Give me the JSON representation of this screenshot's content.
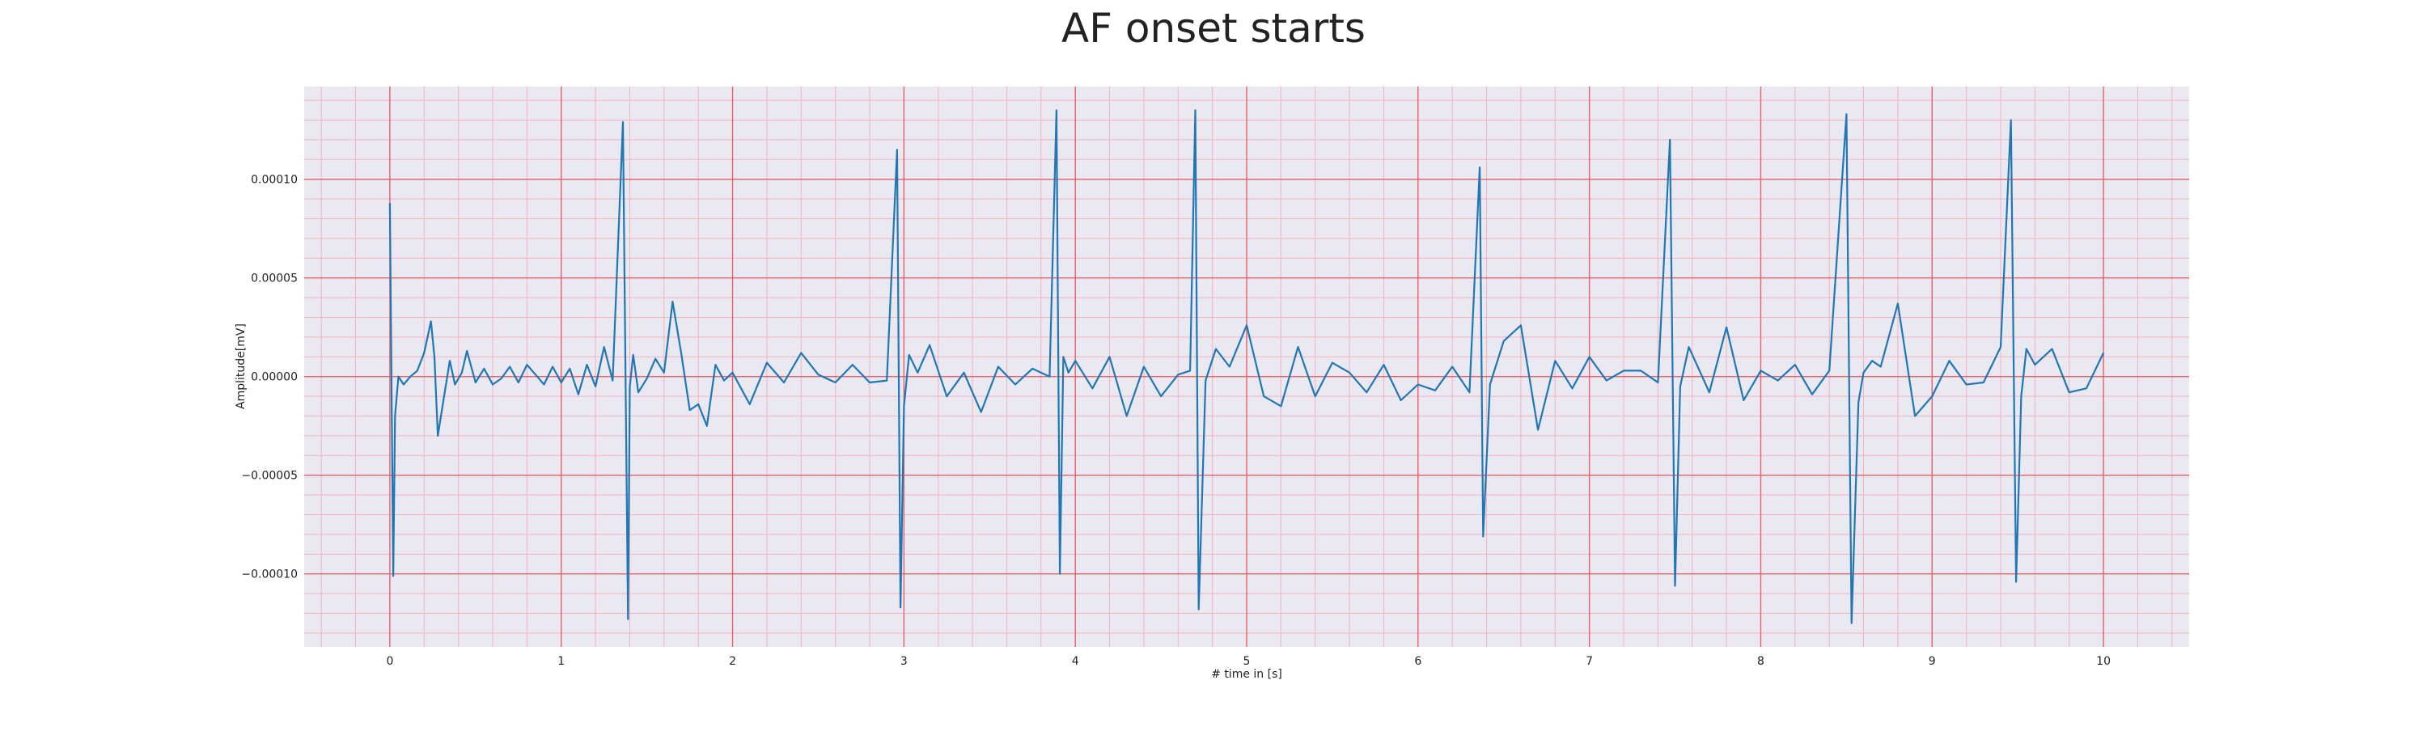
{
  "chart_data": {
    "type": "line",
    "title": "AF onset starts",
    "xlabel": "# time in [s]",
    "ylabel": "Amplitude[mV]",
    "xlim": [
      -0.5,
      10.5
    ],
    "ylim": [
      -0.000137,
      0.000147
    ],
    "x_ticks": [
      0,
      1,
      2,
      3,
      4,
      5,
      6,
      7,
      8,
      9,
      10
    ],
    "x_tick_labels": [
      "0",
      "1",
      "2",
      "3",
      "4",
      "5",
      "6",
      "7",
      "8",
      "9",
      "10"
    ],
    "y_ticks": [
      -0.0001,
      -5e-05,
      0.0,
      5e-05,
      0.0001
    ],
    "y_tick_labels": [
      "−0.00010",
      "−0.00005",
      "0.00000",
      "0.00005",
      "0.00010"
    ],
    "grid": "on",
    "legend": "none",
    "series": [
      {
        "x": [
          0.0,
          0.02,
          0.03,
          0.05,
          0.08,
          0.12,
          0.16,
          0.2,
          0.24,
          0.26,
          0.28,
          0.32,
          0.35,
          0.38,
          0.42,
          0.45,
          0.5,
          0.55,
          0.6,
          0.65,
          0.7,
          0.75,
          0.8,
          0.85,
          0.9,
          0.95,
          1.0,
          1.05,
          1.1,
          1.15,
          1.2,
          1.25,
          1.3,
          1.36,
          1.39,
          1.4,
          1.42,
          1.45,
          1.5,
          1.55,
          1.6,
          1.65,
          1.7,
          1.75,
          1.8,
          1.85,
          1.9,
          1.95,
          2.0,
          2.1,
          2.2,
          2.3,
          2.4,
          2.5,
          2.6,
          2.7,
          2.8,
          2.9,
          2.96,
          2.98,
          3.0,
          3.03,
          3.08,
          3.15,
          3.25,
          3.35,
          3.45,
          3.55,
          3.65,
          3.75,
          3.85,
          3.89,
          3.91,
          3.93,
          3.96,
          4.0,
          4.1,
          4.2,
          4.3,
          4.4,
          4.5,
          4.6,
          4.67,
          4.7,
          4.72,
          4.76,
          4.82,
          4.9,
          5.0,
          5.1,
          5.2,
          5.3,
          5.4,
          5.5,
          5.6,
          5.7,
          5.8,
          5.9,
          6.0,
          6.1,
          6.2,
          6.3,
          6.36,
          6.38,
          6.42,
          6.5,
          6.6,
          6.7,
          6.8,
          6.9,
          7.0,
          7.1,
          7.2,
          7.3,
          7.4,
          7.47,
          7.5,
          7.53,
          7.58,
          7.7,
          7.8,
          7.9,
          8.0,
          8.1,
          8.2,
          8.3,
          8.4,
          8.5,
          8.53,
          8.57,
          8.6,
          8.65,
          8.7,
          8.8,
          8.9,
          9.0,
          9.1,
          9.2,
          9.3,
          9.4,
          9.46,
          9.49,
          9.52,
          9.55,
          9.6,
          9.7,
          9.8,
          9.9,
          10.0
        ],
        "values": [
          8.8e-05,
          -0.000101,
          -2e-05,
          0.0,
          -4e-06,
          0.0,
          3e-06,
          1.2e-05,
          2.8e-05,
          1e-05,
          -3e-05,
          -8e-06,
          8e-06,
          -4e-06,
          2e-06,
          1.3e-05,
          -3e-06,
          4e-06,
          -4e-06,
          -1e-06,
          5e-06,
          -3e-06,
          6e-06,
          1e-06,
          -4e-06,
          5e-06,
          -3e-06,
          4e-06,
          -9e-06,
          6e-06,
          -5e-06,
          1.5e-05,
          -2e-06,
          0.000129,
          -0.000123,
          -5e-06,
          1.1e-05,
          -8e-06,
          -1e-06,
          9e-06,
          2e-06,
          3.8e-05,
          1.2e-05,
          -1.7e-05,
          -1.4e-05,
          -2.5e-05,
          6e-06,
          -2e-06,
          2e-06,
          -1.4e-05,
          7e-06,
          -3e-06,
          1.2e-05,
          1e-06,
          -3e-06,
          6e-06,
          -3e-06,
          -2e-06,
          0.000115,
          -0.000117,
          -1.5e-05,
          1.1e-05,
          2e-06,
          1.6e-05,
          -1e-05,
          2e-06,
          -1.8e-05,
          5e-06,
          -4e-06,
          4e-06,
          0.0,
          0.000135,
          -0.0001,
          1e-05,
          2e-06,
          8e-06,
          -6e-06,
          1e-05,
          -2e-05,
          5e-06,
          -1e-05,
          1e-06,
          3e-06,
          0.000135,
          -0.000118,
          -2e-06,
          1.4e-05,
          5e-06,
          2.6e-05,
          -1e-05,
          -1.5e-05,
          1.5e-05,
          -1e-05,
          7e-06,
          2e-06,
          -8e-06,
          6e-06,
          -1.2e-05,
          -4e-06,
          -7e-06,
          5e-06,
          -8e-06,
          0.000106,
          -8.1e-05,
          -4e-06,
          1.8e-05,
          2.6e-05,
          -2.7e-05,
          8e-06,
          -6e-06,
          1e-05,
          -2e-06,
          3e-06,
          3e-06,
          -3e-06,
          0.00012,
          -0.000106,
          -5e-06,
          1.5e-05,
          -8e-06,
          2.5e-05,
          -1.2e-05,
          3e-06,
          -2e-06,
          6e-06,
          -9e-06,
          3e-06,
          0.000133,
          -0.000125,
          -1.3e-05,
          2e-06,
          8e-06,
          5e-06,
          3.7e-05,
          -2e-05,
          -1e-05,
          8e-06,
          -4e-06,
          -3e-06,
          1.5e-05,
          0.00013,
          -0.000104,
          -1e-05,
          1.4e-05,
          6e-06,
          1.4e-05,
          -8e-06,
          -6e-06,
          1.2e-05
        ]
      }
    ]
  },
  "colors": {
    "line": "#1f77b4",
    "plot_background": "#eae8f1",
    "major_grid": "#e8616a",
    "minor_grid": "#f2b3c0",
    "text": "#222222"
  }
}
